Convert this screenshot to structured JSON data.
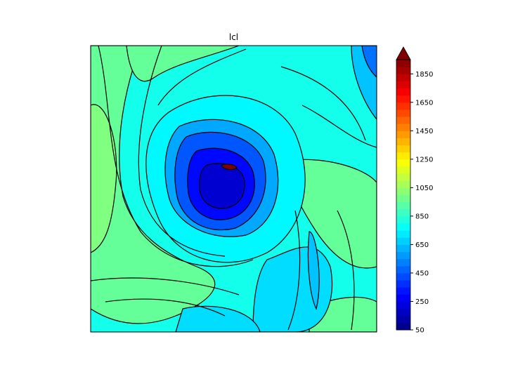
{
  "chart_data": {
    "type": "heatmap",
    "subtype": "filled contour map",
    "title": "lcl",
    "xlabel": "",
    "ylabel": "",
    "colormap": "jet",
    "levels": {
      "min": 50,
      "max": 1950,
      "step": 50
    },
    "extend": "max",
    "colorbar": {
      "placement": "right",
      "tick_labels": [
        "50",
        "250",
        "450",
        "650",
        "850",
        "1050",
        "1250",
        "1450",
        "1650",
        "1850"
      ],
      "tick_values": [
        50,
        250,
        450,
        650,
        850,
        1050,
        1250,
        1450,
        1650,
        1850
      ]
    },
    "field_summary": {
      "center_minimum": 150,
      "background": 800,
      "outer_bands_max": 1000
    },
    "contour_lines": true,
    "grid": false
  }
}
